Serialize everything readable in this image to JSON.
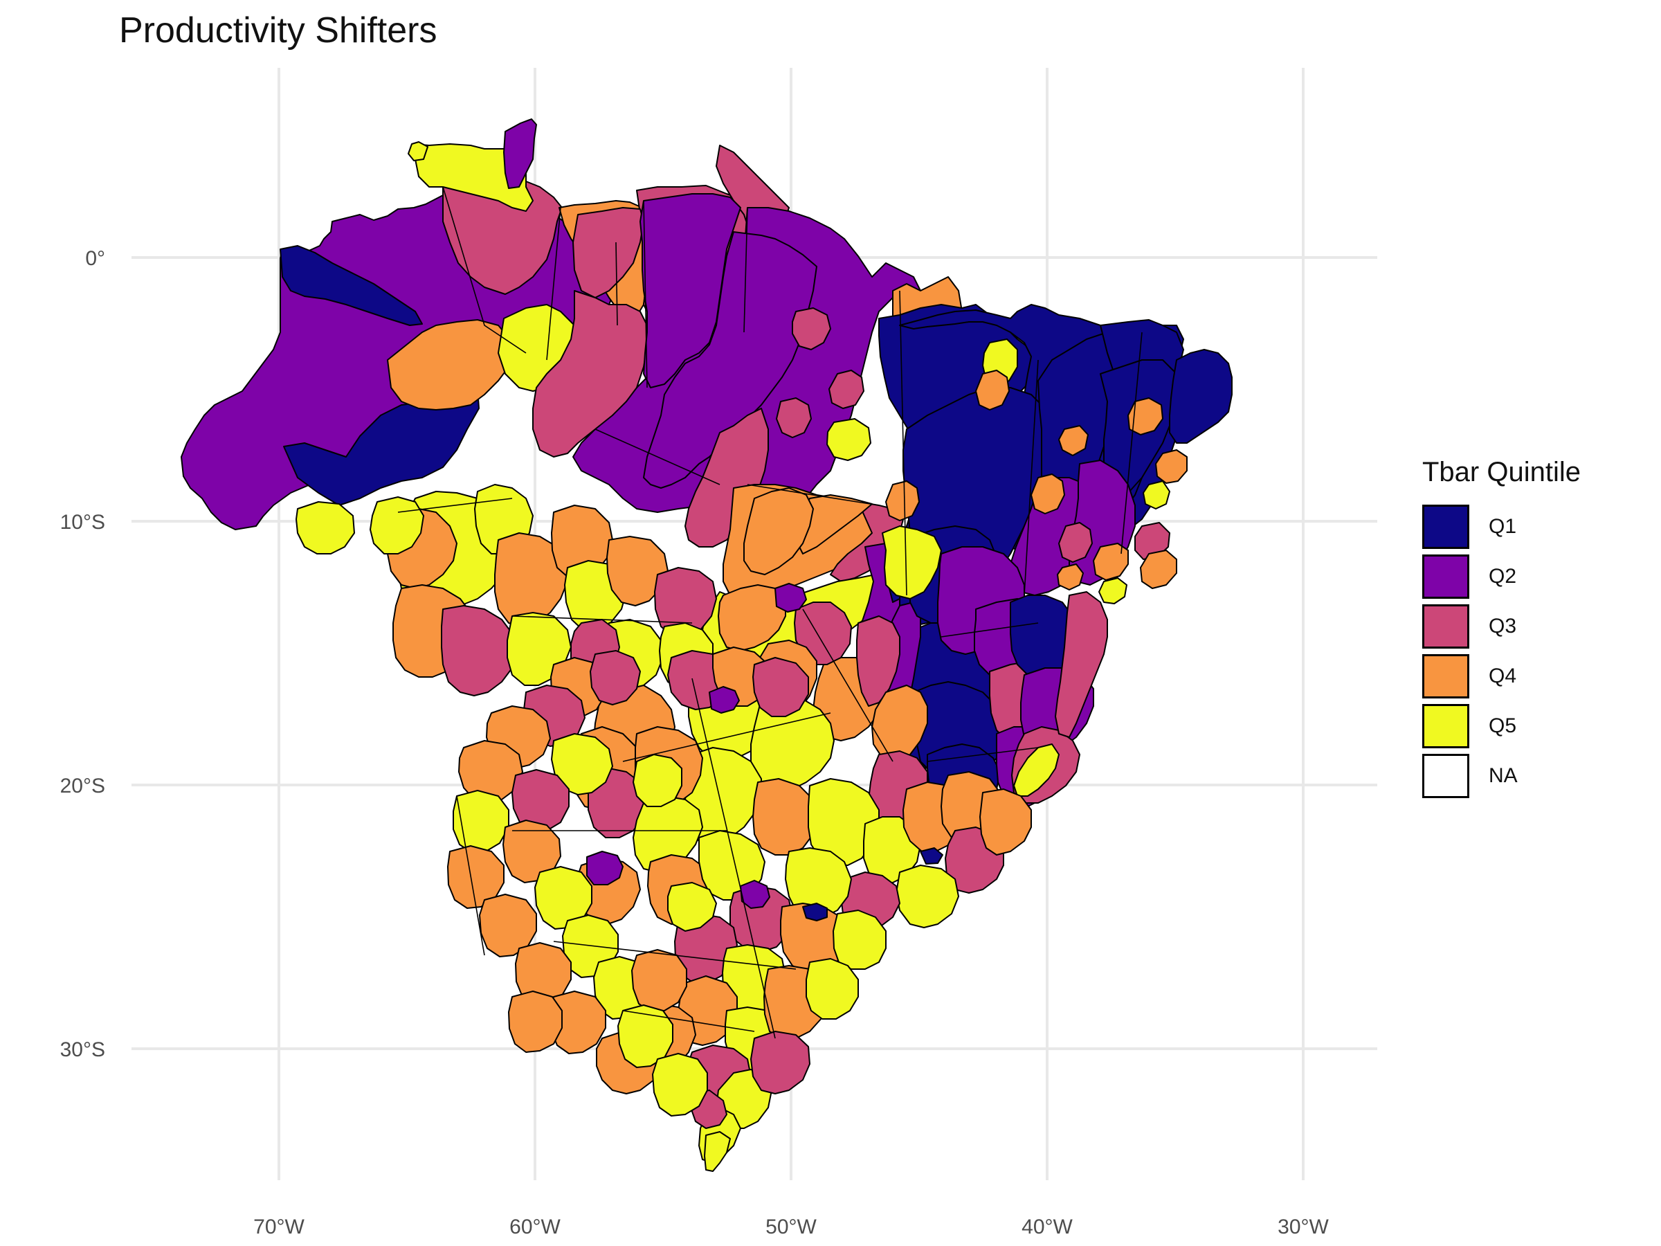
{
  "title": "Productivity Shifters",
  "legend": {
    "title": "Tbar Quintile",
    "items": [
      {
        "label": "Q1",
        "color": "#0d0887"
      },
      {
        "label": "Q2",
        "color": "#7e03a8"
      },
      {
        "label": "Q3",
        "color": "#cc4778"
      },
      {
        "label": "Q4",
        "color": "#f89540"
      },
      {
        "label": "Q5",
        "color": "#f0f921"
      },
      {
        "label": "NA",
        "color": "#ffffff"
      }
    ]
  },
  "axes": {
    "x_ticks": [
      "70°W",
      "60°W",
      "50°W",
      "40°W",
      "30°W"
    ],
    "y_ticks": [
      "0°",
      "10°S",
      "20°S",
      "30°S"
    ]
  },
  "chart_data": {
    "type": "choropleth",
    "region": "Brazil",
    "fill_variable": "Tbar Quintile",
    "categories": [
      "Q1",
      "Q2",
      "Q3",
      "Q4",
      "Q5",
      "NA"
    ],
    "x_ticks_lon": [
      -70,
      -60,
      -50,
      -40,
      -30
    ],
    "y_ticks_lat": [
      0,
      -10,
      -20,
      -30
    ],
    "lon_range": [
      -75,
      -27
    ],
    "lat_range": [
      -35,
      7
    ],
    "grid": true
  }
}
